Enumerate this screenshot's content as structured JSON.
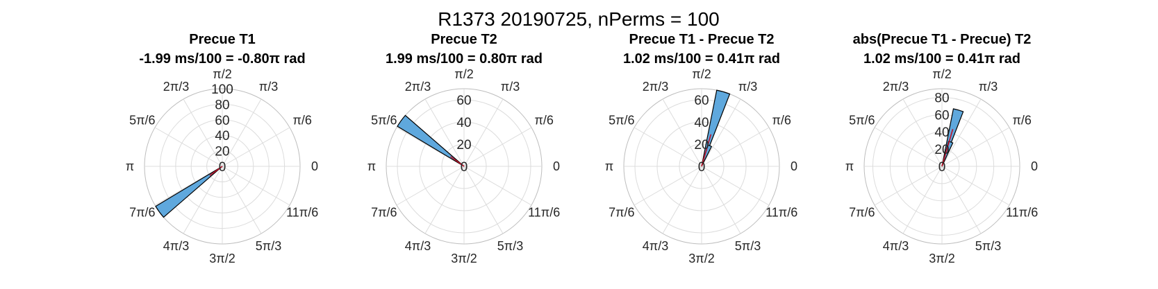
{
  "figure": {
    "suptitle": "R1373 20190725, nPerms = 100"
  },
  "colors": {
    "bar_fill": "#5fa8dd",
    "bar_edge": "#000000",
    "mean_line": "#c0142b",
    "grid": "#dcdcdc"
  },
  "chart_data": [
    {
      "type": "polar-histogram",
      "title": "Precue T1",
      "subtitle": "-1.99 ms/100 = -0.80π rad",
      "theta_tick_labels": [
        "0",
        "π/6",
        "π/3",
        "π/2",
        "2π/3",
        "5π/6",
        "π",
        "7π/6",
        "4π/3",
        "3π/2",
        "5π/3",
        "11π/6"
      ],
      "r_ticks": [
        0,
        20,
        40,
        60,
        80,
        100
      ],
      "rlim": [
        0,
        100
      ],
      "bars": [
        {
          "theta_pi": 1.2,
          "count": 100
        }
      ],
      "mean_angle_pi": 1.2,
      "mean_length": 20
    },
    {
      "type": "polar-histogram",
      "title": "Precue T2",
      "subtitle": "1.99 ms/100 = 0.80π rad",
      "theta_tick_labels": [
        "0",
        "π/6",
        "π/3",
        "π/2",
        "2π/3",
        "5π/6",
        "π",
        "7π/6",
        "4π/3",
        "3π/2",
        "5π/3",
        "11π/6"
      ],
      "r_ticks": [
        0,
        20,
        40,
        60
      ],
      "rlim": [
        0,
        70
      ],
      "bars": [
        {
          "theta_pi": 0.8,
          "count": 70
        }
      ],
      "mean_angle_pi": 0.8,
      "mean_length": 15
    },
    {
      "type": "polar-histogram",
      "title": "Precue T1 - Precue T2",
      "subtitle": "1.02 ms/100 = 0.41π rad",
      "theta_tick_labels": [
        "0",
        "π/6",
        "π/3",
        "π/2",
        "2π/3",
        "5π/6",
        "π",
        "7π/6",
        "4π/3",
        "3π/2",
        "5π/3",
        "11π/6"
      ],
      "r_ticks": [
        0,
        20,
        40,
        60
      ],
      "rlim": [
        0,
        70
      ],
      "bars": [
        {
          "theta_pi": 0.41,
          "count": 70
        },
        {
          "theta_pi": 0.38,
          "count": 20
        }
      ],
      "mean_angle_pi": 0.41,
      "mean_length": 30
    },
    {
      "type": "polar-histogram",
      "title": "abs(Precue T1 - Precue) T2",
      "subtitle": "1.02 ms/100 = 0.41π rad",
      "theta_tick_labels": [
        "0",
        "π/6",
        "π/3",
        "π/2",
        "2π/3",
        "5π/6",
        "π",
        "7π/6",
        "4π/3",
        "3π/2",
        "5π/3",
        "11π/6"
      ],
      "r_ticks": [
        0,
        20,
        40,
        60,
        80
      ],
      "rlim": [
        0,
        90
      ],
      "bars": [
        {
          "theta_pi": 0.41,
          "count": 68
        },
        {
          "theta_pi": 0.39,
          "count": 30
        }
      ],
      "mean_angle_pi": 0.41,
      "mean_length": 45
    }
  ]
}
